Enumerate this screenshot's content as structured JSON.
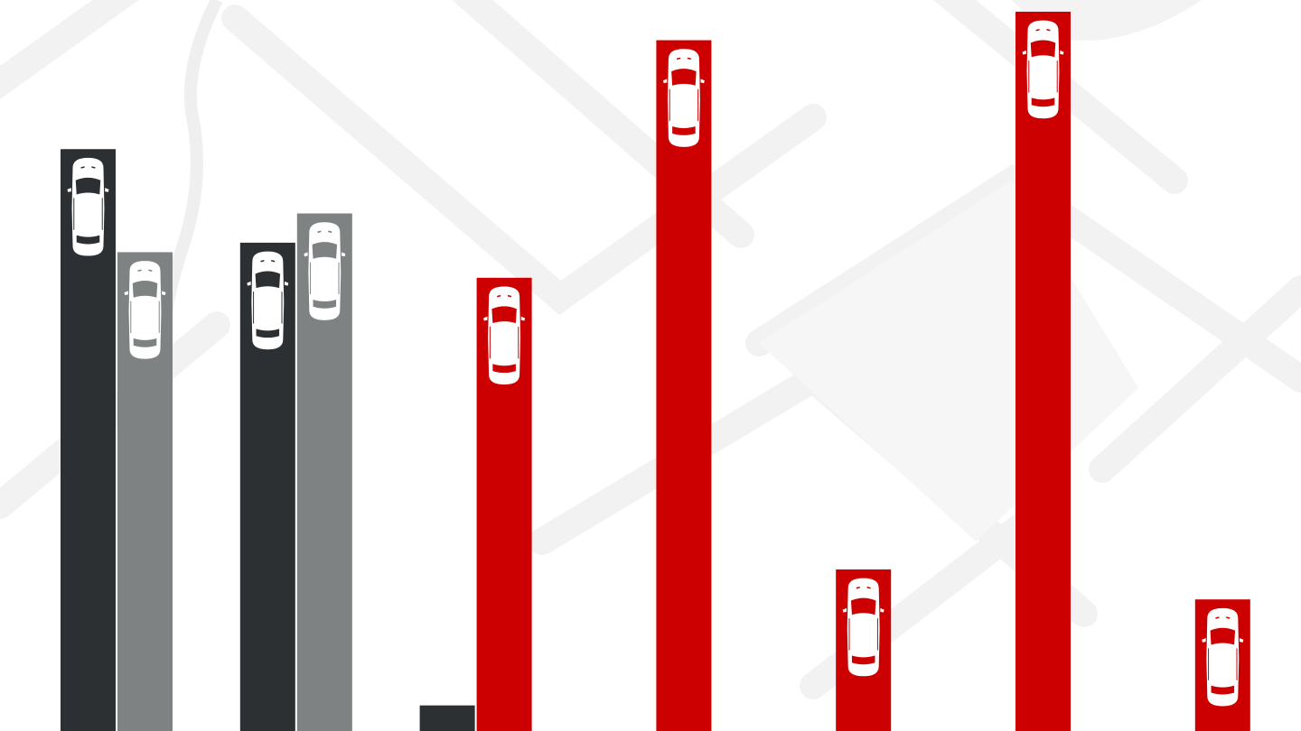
{
  "chart_data": {
    "type": "bar",
    "title": "",
    "xlabel": "",
    "ylabel": "",
    "ylim": [
      0,
      100
    ],
    "grid": false,
    "legend": "none",
    "categories": [
      "",
      "",
      "",
      "",
      "",
      "",
      ""
    ],
    "bars": [
      {
        "category_index": 0,
        "slot": 0,
        "value": 79.6,
        "color": "#2d3032",
        "has_car_icon": true
      },
      {
        "category_index": 0,
        "slot": 1,
        "value": 65.5,
        "color": "#7f8283",
        "has_car_icon": true
      },
      {
        "category_index": 1,
        "slot": 0,
        "value": 66.8,
        "color": "#2d3032",
        "has_car_icon": true
      },
      {
        "category_index": 1,
        "slot": 1,
        "value": 70.8,
        "color": "#7f8283",
        "has_car_icon": true
      },
      {
        "category_index": 2,
        "slot": 0,
        "value": 3.5,
        "color": "#2d3032",
        "has_car_icon": false
      },
      {
        "category_index": 2,
        "slot": 1,
        "value": 62.0,
        "color": "#cc0000",
        "has_car_icon": true
      },
      {
        "category_index": 3,
        "slot": 1,
        "value": 94.5,
        "color": "#cc0000",
        "has_car_icon": true
      },
      {
        "category_index": 4,
        "slot": 1,
        "value": 22.1,
        "color": "#cc0000",
        "has_car_icon": true
      },
      {
        "category_index": 5,
        "slot": 1,
        "value": 98.4,
        "color": "#cc0000",
        "has_car_icon": true
      },
      {
        "category_index": 6,
        "slot": 1,
        "value": 18.0,
        "color": "#cc0000",
        "has_car_icon": true
      }
    ],
    "colors": {
      "series_dark": "#2d3032",
      "series_grey": "#7f8283",
      "series_red": "#cc0000",
      "background_map": "#f4f4f4"
    },
    "icons": [
      "car-topview-icon"
    ]
  }
}
